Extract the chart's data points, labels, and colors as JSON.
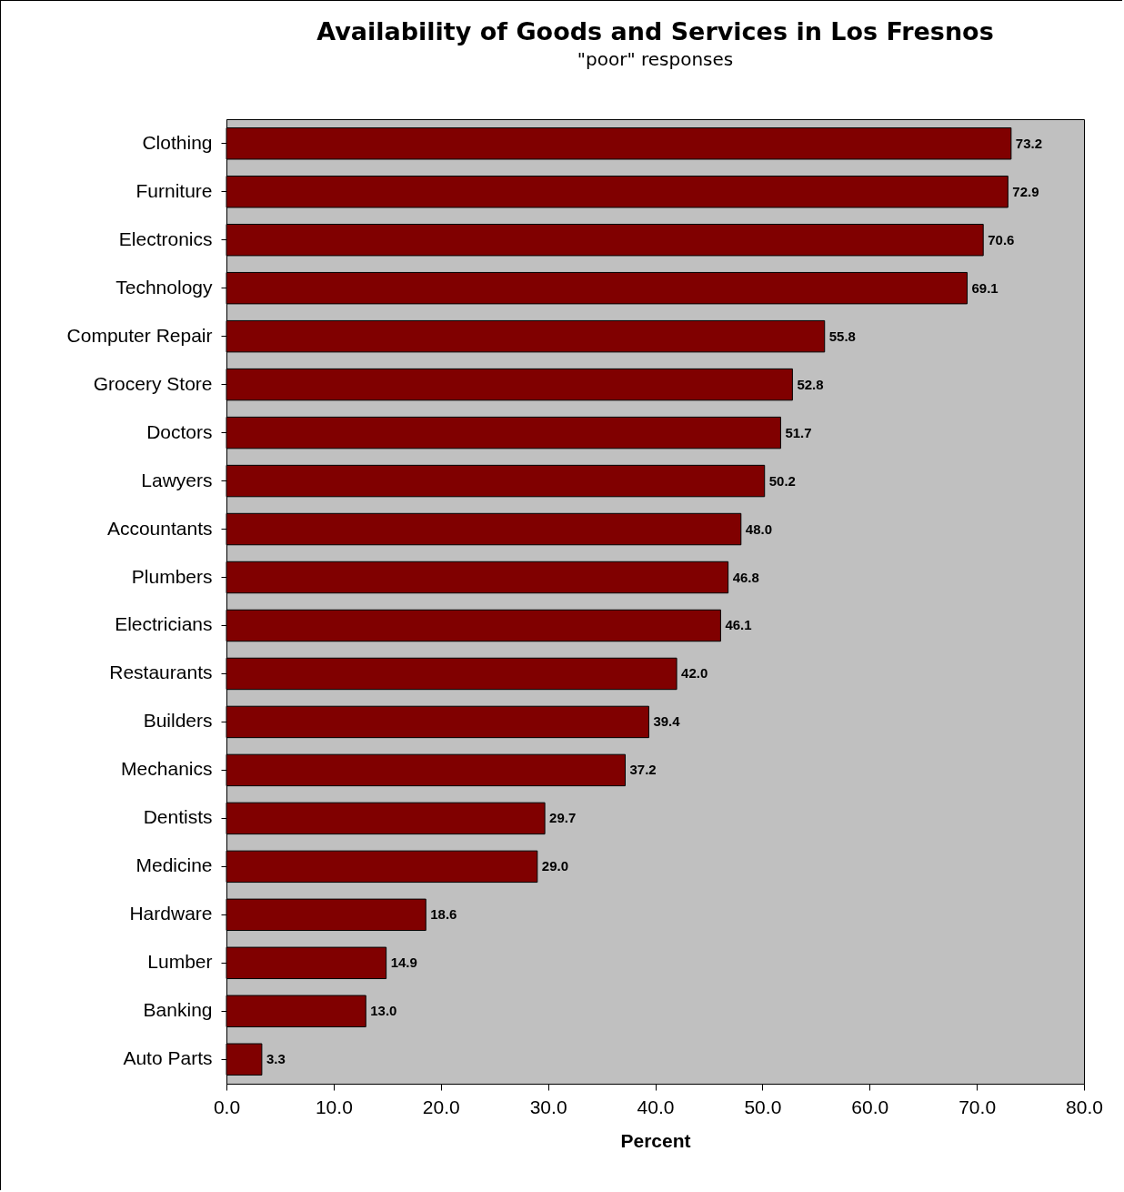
{
  "chart_data": {
    "type": "bar",
    "orientation": "horizontal",
    "title": "Availability of Goods and Services in Los Fresnos",
    "subtitle": "\"poor\" responses",
    "xlabel": "Percent",
    "categories": [
      "Clothing",
      "Furniture",
      "Electronics",
      "Technology",
      "Computer Repair",
      "Grocery Store",
      "Doctors",
      "Lawyers",
      "Accountants",
      "Plumbers",
      "Electricians",
      "Restaurants",
      "Builders",
      "Mechanics",
      "Dentists",
      "Medicine",
      "Hardware",
      "Lumber",
      "Banking",
      "Auto Parts"
    ],
    "values": [
      73.2,
      72.9,
      70.6,
      69.1,
      55.8,
      52.8,
      51.7,
      50.2,
      48.0,
      46.8,
      46.1,
      42.0,
      39.4,
      37.2,
      29.7,
      29.0,
      18.6,
      14.9,
      13.0,
      3.3
    ],
    "value_labels": [
      "73.2",
      "72.9",
      "70.6",
      "69.1",
      "55.8",
      "52.8",
      "51.7",
      "50.2",
      "48.0",
      "46.8",
      "46.1",
      "42.0",
      "39.4",
      "37.2",
      "29.7",
      "29.0",
      "18.6",
      "14.9",
      "13.0",
      "3.3"
    ],
    "color": "#800000",
    "xlim": [
      0,
      80
    ],
    "xticks": [
      {
        "value": 0,
        "label": "0.0"
      },
      {
        "value": 10,
        "label": "10.0"
      },
      {
        "value": 20,
        "label": "20.0"
      },
      {
        "value": 30,
        "label": "30.0"
      },
      {
        "value": 40,
        "label": "40.0"
      },
      {
        "value": 50,
        "label": "50.0"
      },
      {
        "value": 60,
        "label": "60.0"
      },
      {
        "value": 70,
        "label": "70.0"
      },
      {
        "value": 80,
        "label": "80.0"
      }
    ]
  }
}
